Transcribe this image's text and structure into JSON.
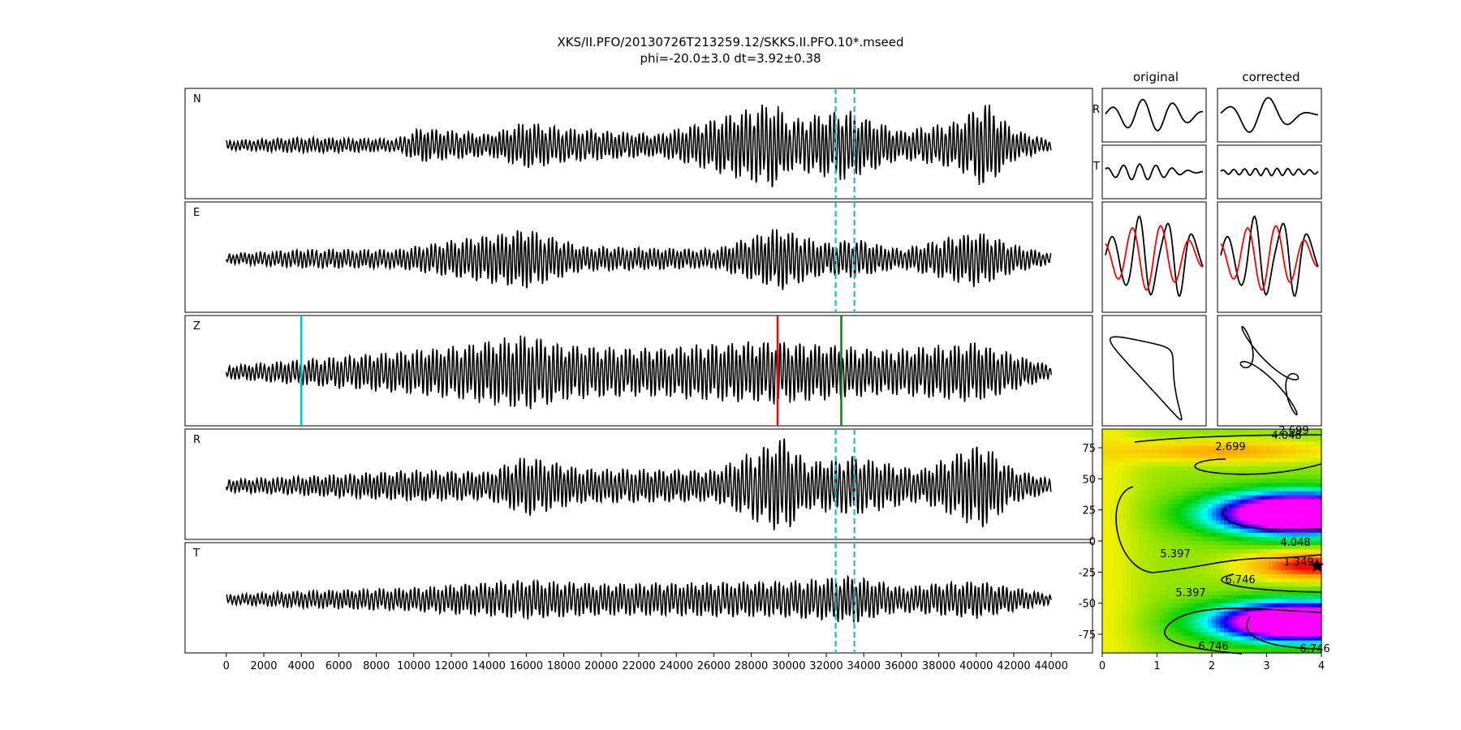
{
  "figure": {
    "title_line1": "XKS/II.PFO/20130726T213259.12/SKKS.II.PFO.10*.mseed",
    "title_line2": "phi=-20.0±3.0 dt=3.92±0.38",
    "col_original": "original",
    "col_corrected": "corrected"
  },
  "colors": {
    "trace": "#000000",
    "window": "#17becf",
    "pick_cyan": "#00bcd4",
    "pick_red": "#ff0000",
    "pick_green": "#008000",
    "particle_red": "#ff0000"
  },
  "chart_data": [
    {
      "type": "line",
      "name": "waveforms",
      "panels": [
        "N",
        "E",
        "Z",
        "R",
        "T"
      ],
      "xlim": [
        -2200,
        46200
      ],
      "xticks": [
        0,
        2000,
        4000,
        6000,
        8000,
        10000,
        12000,
        14000,
        16000,
        18000,
        20000,
        22000,
        24000,
        26000,
        28000,
        30000,
        32000,
        34000,
        36000,
        38000,
        40000,
        42000,
        44000
      ],
      "trace_x_range": [
        0,
        44000
      ],
      "window_dashed": [
        32500,
        33500
      ],
      "window_panels": [
        "N",
        "E",
        "R",
        "T"
      ],
      "picks_Z": [
        {
          "x": 4000,
          "color": "cyan"
        },
        {
          "x": 29400,
          "color": "red"
        },
        {
          "x": 32800,
          "color": "green"
        }
      ]
    },
    {
      "type": "line",
      "name": "window-components",
      "columns": [
        "original",
        "corrected"
      ],
      "rows": [
        "R",
        "T"
      ]
    },
    {
      "type": "scatter",
      "name": "particle-motion",
      "columns": [
        "original",
        "corrected"
      ]
    },
    {
      "type": "heatmap",
      "name": "energy-grid",
      "xlim": [
        0,
        4
      ],
      "ylim": [
        -90,
        90
      ],
      "xticks": [
        0,
        1,
        2,
        3,
        4
      ],
      "yticks": [
        -75,
        -50,
        -25,
        0,
        25,
        50,
        75
      ],
      "contour_levels": [
        "1.349",
        "2.699",
        "4.048",
        "5.397",
        "6.746"
      ],
      "minimum": {
        "x": 3.92,
        "y": -20.0
      }
    }
  ]
}
